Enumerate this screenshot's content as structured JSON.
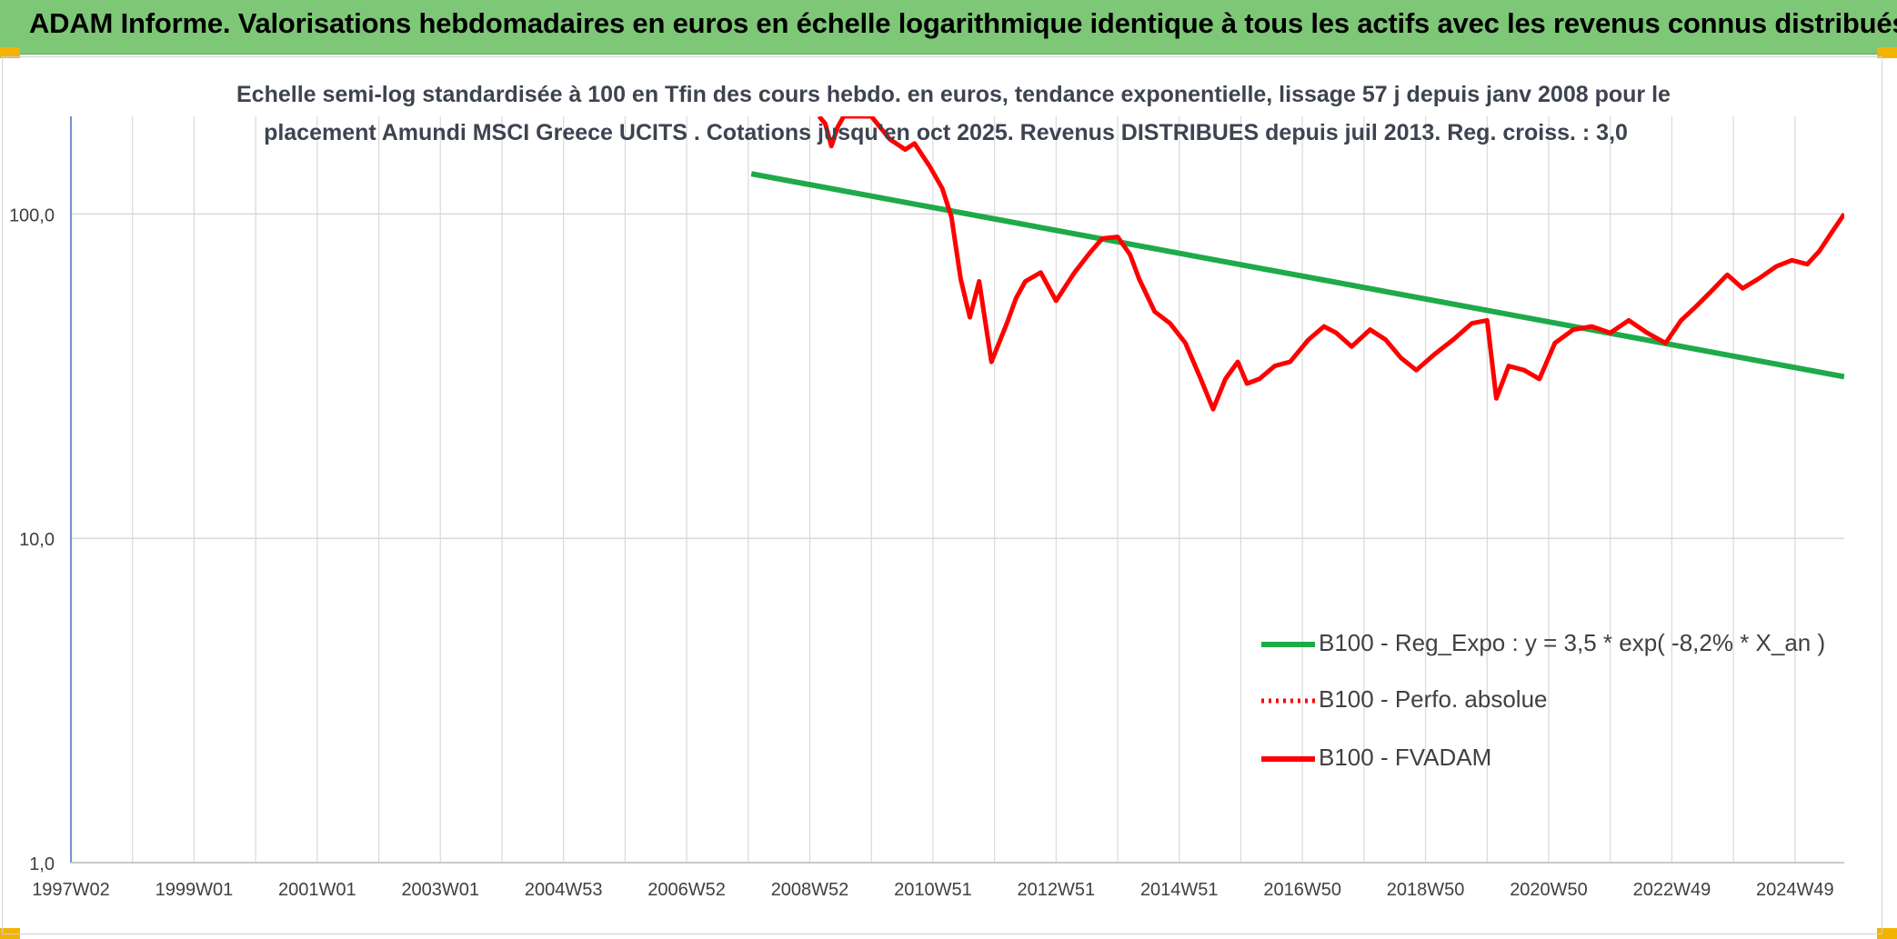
{
  "header": {
    "banner_title": "ADAM Informe. Valorisations hebdomadaires en euros en échelle logarithmique identique à tous les actifs avec les revenus connus distribués"
  },
  "colors": {
    "banner": "#7dc776",
    "accent_corners": "#f2b400",
    "fvadam": "#ff0000",
    "perfo": "#ff0000",
    "regression": "#1faa4a",
    "grid": "#d9d9d9",
    "axis": "#4472c4"
  },
  "chart_data": {
    "type": "line",
    "title_line1": "Echelle semi-log standardisée à 100 en Tfin des cours hebdo. en euros, tendance exponentielle, lissage 57 j depuis janv 2008 pour le",
    "title_line2": "placement Amundi MSCI Greece UCITS . Cotations jusqu'en oct 2025. Revenus DISTRIBUES depuis juil 2013. Reg. croiss. : 3,0",
    "y_scale": "log",
    "ylim": [
      1,
      200
    ],
    "xlim": [
      1997.0,
      2025.8
    ],
    "y_ticks": [
      {
        "value": 100,
        "label": "100,0"
      },
      {
        "value": 10,
        "label": "10,0"
      },
      {
        "value": 1,
        "label": "1,0"
      }
    ],
    "x_ticks": [
      {
        "value": 1997.0,
        "label": "1997W02"
      },
      {
        "value": 1999.0,
        "label": "1999W01"
      },
      {
        "value": 2001.0,
        "label": "2001W01"
      },
      {
        "value": 2003.0,
        "label": "2003W01"
      },
      {
        "value": 2005.0,
        "label": "2004W53"
      },
      {
        "value": 2007.0,
        "label": "2006W52"
      },
      {
        "value": 2009.0,
        "label": "2008W52"
      },
      {
        "value": 2011.0,
        "label": "2010W51"
      },
      {
        "value": 2013.0,
        "label": "2012W51"
      },
      {
        "value": 2015.0,
        "label": "2014W51"
      },
      {
        "value": 2017.0,
        "label": "2016W50"
      },
      {
        "value": 2019.0,
        "label": "2018W50"
      },
      {
        "value": 2021.0,
        "label": "2020W50"
      },
      {
        "value": 2023.0,
        "label": "2022W49"
      },
      {
        "value": 2025.0,
        "label": "2024W49"
      }
    ],
    "grid": true,
    "legend_position": "bottom-right",
    "series": [
      {
        "name": "B100 - Reg_Expo : y = 3,5 * exp( -8,2% *  X_an )",
        "style": "solid-green",
        "x": [
          2008.05,
          2025.8
        ],
        "y": [
          133,
          31.5
        ]
      },
      {
        "name": "B100 - Perfo. absolue",
        "style": "dotted-red",
        "x": [],
        "y": []
      },
      {
        "name": "B100 - FVADAM",
        "style": "solid-red",
        "x": [
          2009.15,
          2009.25,
          2009.35,
          2009.45,
          2009.55,
          2010.0,
          2010.3,
          2010.55,
          2010.7,
          2010.95,
          2011.15,
          2011.3,
          2011.45,
          2011.6,
          2011.75,
          2011.95,
          2012.2,
          2012.35,
          2012.5,
          2012.75,
          2013.0,
          2013.3,
          2013.55,
          2013.75,
          2014.0,
          2014.2,
          2014.35,
          2014.6,
          2014.85,
          2015.1,
          2015.35,
          2015.55,
          2015.75,
          2015.95,
          2016.1,
          2016.3,
          2016.55,
          2016.8,
          2017.1,
          2017.35,
          2017.55,
          2017.8,
          2018.1,
          2018.35,
          2018.6,
          2018.85,
          2019.15,
          2019.45,
          2019.75,
          2020.0,
          2020.15,
          2020.35,
          2020.6,
          2020.85,
          2021.1,
          2021.4,
          2021.7,
          2022.0,
          2022.3,
          2022.6,
          2022.9,
          2023.15,
          2023.4,
          2023.65,
          2023.9,
          2024.15,
          2024.4,
          2024.7,
          2024.95,
          2025.2,
          2025.4,
          2025.6,
          2025.8
        ],
        "y": [
          200,
          190,
          162,
          185,
          200,
          200,
          170,
          158,
          165,
          140,
          120,
          98,
          63,
          48,
          62,
          35,
          46,
          55,
          62,
          66,
          54,
          66,
          76,
          84,
          85,
          75,
          63,
          50,
          46,
          40,
          31,
          25,
          31,
          35,
          30,
          31,
          34,
          35,
          41,
          45,
          43,
          39,
          44,
          41,
          36,
          33,
          37,
          41,
          46,
          47,
          27,
          34,
          33,
          31,
          40,
          44,
          45,
          43,
          47,
          43,
          40,
          47,
          52,
          58,
          65,
          59,
          63,
          69,
          72,
          70,
          77,
          88,
          100
        ]
      }
    ]
  }
}
